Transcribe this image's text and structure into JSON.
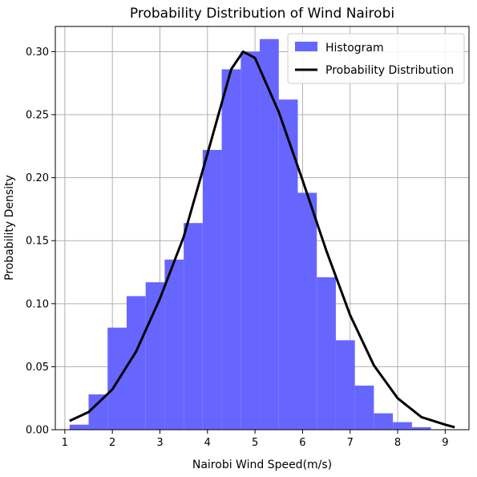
{
  "chart_data": {
    "type": "bar",
    "title": "Probability Distribution of Wind Nairobi",
    "xlabel": "Nairobi Wind Speed(m/s)",
    "ylabel": "Probability Density",
    "xlim": [
      0.8,
      9.5
    ],
    "ylim": [
      0.0,
      0.32
    ],
    "grid": true,
    "legend_position": "top-right",
    "x_ticks": [
      1,
      2,
      3,
      4,
      5,
      6,
      7,
      8,
      9
    ],
    "x_tick_labels": [
      "1",
      "2",
      "3",
      "4",
      "5",
      "6",
      "7",
      "8",
      "9"
    ],
    "y_ticks": [
      0.0,
      0.05,
      0.1,
      0.15,
      0.2,
      0.25,
      0.3
    ],
    "y_tick_labels": [
      "0.00",
      "0.05",
      "0.10",
      "0.15",
      "0.20",
      "0.25",
      "0.30"
    ],
    "histogram": {
      "name": "Histogram",
      "color": "#6666ff",
      "bin_edges": [
        1.1,
        1.5,
        1.9,
        2.3,
        2.7,
        3.1,
        3.5,
        3.9,
        4.3,
        4.7,
        5.1,
        5.5,
        5.9,
        6.3,
        6.7,
        7.1,
        7.5,
        7.9,
        8.3,
        8.7
      ],
      "values": [
        0.004,
        0.028,
        0.081,
        0.106,
        0.117,
        0.135,
        0.164,
        0.222,
        0.286,
        0.3,
        0.31,
        0.262,
        0.188,
        0.121,
        0.071,
        0.035,
        0.013,
        0.006,
        0.002
      ]
    },
    "series": [
      {
        "name": "Probability Distribution",
        "type": "line",
        "color": "#000000",
        "x": [
          1.1,
          1.5,
          2.0,
          2.5,
          3.0,
          3.5,
          4.0,
          4.5,
          4.75,
          5.0,
          5.5,
          6.0,
          6.5,
          7.0,
          7.5,
          8.0,
          8.5,
          9.0,
          9.2
        ],
        "y": [
          0.007,
          0.014,
          0.032,
          0.062,
          0.104,
          0.153,
          0.219,
          0.286,
          0.3,
          0.295,
          0.252,
          0.198,
          0.142,
          0.091,
          0.051,
          0.025,
          0.01,
          0.004,
          0.002
        ]
      }
    ]
  }
}
